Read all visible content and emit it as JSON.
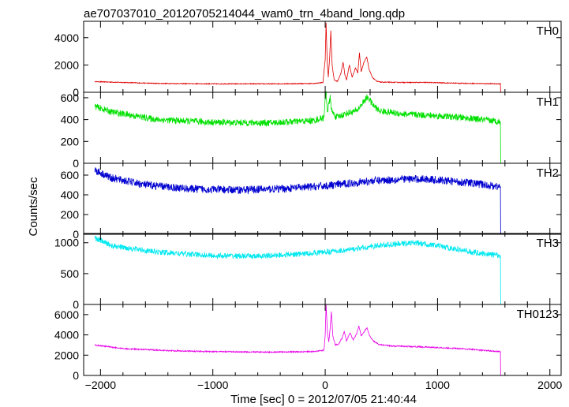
{
  "chart_data": {
    "type": "line",
    "title": "ae707037010_20120705214044_wam0_trn_4band_long.qdp",
    "xlabel": "Time [sec] 0 = 2012/07/05 21:40:44",
    "ylabel": "Counts/sec",
    "xlim": [
      -2150,
      2100
    ],
    "x_ticks": [
      -2000,
      -1000,
      0,
      1000,
      2000
    ],
    "x_tick_labels": [
      "−2000",
      "−1000",
      "0",
      "1000",
      "2000"
    ],
    "grid": false,
    "panels": [
      {
        "name": "TH0",
        "color": "#e00000",
        "ylim": [
          0,
          5200
        ],
        "yticks": [
          0,
          2000,
          4000
        ],
        "ytick_labels": [
          "0",
          "2000",
          "4000"
        ],
        "noise": 30,
        "points": [
          [
            -2050,
            780
          ],
          [
            -1500,
            650
          ],
          [
            -1000,
            620
          ],
          [
            -500,
            620
          ],
          [
            -100,
            640
          ],
          [
            -20,
            720
          ],
          [
            0,
            2400
          ],
          [
            8,
            5100
          ],
          [
            18,
            2200
          ],
          [
            28,
            1100
          ],
          [
            40,
            2600
          ],
          [
            50,
            4500
          ],
          [
            62,
            2000
          ],
          [
            80,
            900
          ],
          [
            110,
            800
          ],
          [
            140,
            1400
          ],
          [
            160,
            2200
          ],
          [
            175,
            1300
          ],
          [
            190,
            900
          ],
          [
            215,
            2000
          ],
          [
            240,
            1100
          ],
          [
            270,
            1800
          ],
          [
            290,
            1400
          ],
          [
            305,
            2900
          ],
          [
            320,
            1500
          ],
          [
            345,
            2200
          ],
          [
            370,
            2600
          ],
          [
            390,
            1700
          ],
          [
            420,
            1100
          ],
          [
            460,
            800
          ],
          [
            500,
            740
          ],
          [
            700,
            720
          ],
          [
            900,
            720
          ],
          [
            1200,
            660
          ],
          [
            1560,
            620
          ],
          [
            1562,
            0
          ],
          [
            2000,
            0
          ]
        ]
      },
      {
        "name": "TH1",
        "color": "#00e000",
        "ylim": [
          0,
          650
        ],
        "yticks": [
          0,
          200,
          400,
          600
        ],
        "ytick_labels": [
          "0",
          "200",
          "400",
          "600"
        ],
        "noise": 30,
        "points": [
          [
            -2050,
            520
          ],
          [
            -1900,
            470
          ],
          [
            -1500,
            400
          ],
          [
            -1000,
            375
          ],
          [
            -500,
            370
          ],
          [
            -100,
            390
          ],
          [
            -10,
            420
          ],
          [
            0,
            580
          ],
          [
            8,
            660
          ],
          [
            20,
            470
          ],
          [
            45,
            600
          ],
          [
            60,
            470
          ],
          [
            100,
            420
          ],
          [
            200,
            460
          ],
          [
            280,
            480
          ],
          [
            340,
            560
          ],
          [
            380,
            610
          ],
          [
            420,
            540
          ],
          [
            480,
            480
          ],
          [
            700,
            450
          ],
          [
            900,
            440
          ],
          [
            1200,
            420
          ],
          [
            1560,
            380
          ],
          [
            1562,
            0
          ],
          [
            2000,
            0
          ]
        ]
      },
      {
        "name": "TH2",
        "color": "#0000d0",
        "ylim": [
          0,
          720
        ],
        "yticks": [
          0,
          200,
          400,
          600
        ],
        "ytick_labels": [
          "0",
          "200",
          "400",
          "600"
        ],
        "noise": 40,
        "points": [
          [
            -2050,
            650
          ],
          [
            -1900,
            570
          ],
          [
            -1600,
            500
          ],
          [
            -1200,
            460
          ],
          [
            -800,
            450
          ],
          [
            -400,
            460
          ],
          [
            0,
            490
          ],
          [
            400,
            540
          ],
          [
            700,
            560
          ],
          [
            900,
            560
          ],
          [
            1100,
            540
          ],
          [
            1300,
            520
          ],
          [
            1560,
            480
          ],
          [
            1562,
            0
          ],
          [
            2000,
            0
          ]
        ]
      },
      {
        "name": "TH3",
        "color": "#00e8f0",
        "ylim": [
          0,
          1150
        ],
        "yticks": [
          0,
          500,
          1000
        ],
        "ytick_labels": [
          "0",
          "500",
          "1000"
        ],
        "noise": 45,
        "points": [
          [
            -2050,
            1080
          ],
          [
            -1900,
            950
          ],
          [
            -1500,
            850
          ],
          [
            -1000,
            790
          ],
          [
            -600,
            780
          ],
          [
            -200,
            820
          ],
          [
            200,
            880
          ],
          [
            500,
            960
          ],
          [
            800,
            1000
          ],
          [
            1000,
            950
          ],
          [
            1300,
            850
          ],
          [
            1560,
            790
          ],
          [
            1562,
            0
          ],
          [
            2000,
            0
          ]
        ]
      },
      {
        "name": "TH0123",
        "color": "#e800e8",
        "ylim": [
          0,
          7000
        ],
        "yticks": [
          0,
          2000,
          4000,
          6000
        ],
        "ytick_labels": [
          "0",
          "2000",
          "4000",
          "6000"
        ],
        "noise": 60,
        "points": [
          [
            -2050,
            3000
          ],
          [
            -1800,
            2650
          ],
          [
            -1400,
            2450
          ],
          [
            -1000,
            2350
          ],
          [
            -500,
            2300
          ],
          [
            -100,
            2350
          ],
          [
            -10,
            2500
          ],
          [
            0,
            4000
          ],
          [
            8,
            7000
          ],
          [
            20,
            4200
          ],
          [
            32,
            3300
          ],
          [
            45,
            4800
          ],
          [
            55,
            6300
          ],
          [
            68,
            3900
          ],
          [
            90,
            3000
          ],
          [
            120,
            3100
          ],
          [
            150,
            3700
          ],
          [
            170,
            4300
          ],
          [
            190,
            3400
          ],
          [
            220,
            4200
          ],
          [
            250,
            3500
          ],
          [
            280,
            4100
          ],
          [
            300,
            4900
          ],
          [
            320,
            3900
          ],
          [
            345,
            4300
          ],
          [
            372,
            4700
          ],
          [
            395,
            3900
          ],
          [
            430,
            3400
          ],
          [
            480,
            3050
          ],
          [
            600,
            2900
          ],
          [
            900,
            2800
          ],
          [
            1200,
            2650
          ],
          [
            1560,
            2350
          ],
          [
            1562,
            0
          ],
          [
            2000,
            0
          ]
        ]
      }
    ]
  }
}
